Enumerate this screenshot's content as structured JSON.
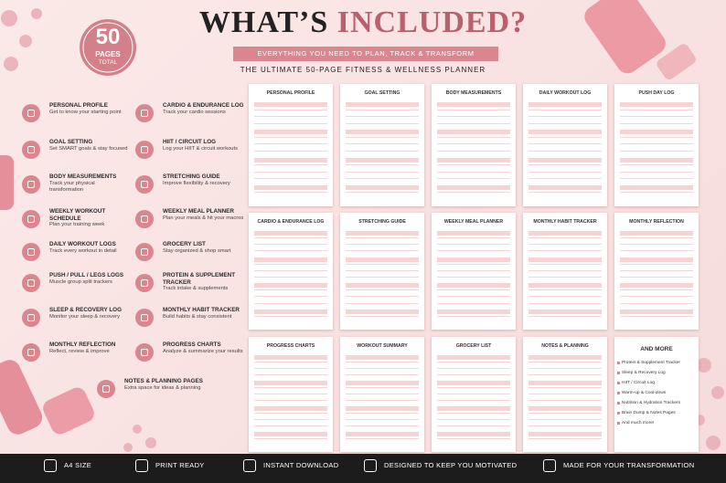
{
  "header": {
    "title_part1": "WHAT’S",
    "title_part2": "INCLUDED?",
    "ribbon": "EVERYTHING YOU NEED TO PLAN, TRACK & TRANSFORM",
    "subtitle": "THE ULTIMATE 50-PAGE FITNESS & WELLNESS PLANNER"
  },
  "badge": {
    "number": "50",
    "label": "PAGES",
    "sublabel": "TOTAL"
  },
  "features": [
    {
      "title": "PERSONAL PROFILE",
      "desc": "Get to know your starting point"
    },
    {
      "title": "GOAL SETTING",
      "desc": "Set SMART goals & stay focused"
    },
    {
      "title": "BODY MEASUREMENTS",
      "desc": "Track your physical transformation"
    },
    {
      "title": "WEEKLY WORKOUT SCHEDULE",
      "desc": "Plan your training week"
    },
    {
      "title": "DAILY WORKOUT LOGS",
      "desc": "Track every workout in detail"
    },
    {
      "title": "PUSH / PULL / LEGS LOGS",
      "desc": "Muscle group split trackers"
    },
    {
      "title": "SLEEP & RECOVERY LOG",
      "desc": "Monitor your sleep & recovery"
    },
    {
      "title": "MONTHLY REFLECTION",
      "desc": "Reflect, review & improve"
    },
    {
      "title": "CARDIO & ENDURANCE LOG",
      "desc": "Track your cardio sessions"
    },
    {
      "title": "HIIT / CIRCUIT LOG",
      "desc": "Log your HIIT & circuit workouts"
    },
    {
      "title": "STRETCHING GUIDE",
      "desc": "Improve flexibility & recovery"
    },
    {
      "title": "WEEKLY MEAL PLANNER",
      "desc": "Plan your meals & hit your macros"
    },
    {
      "title": "GROCERY LIST",
      "desc": "Stay organized & shop smart"
    },
    {
      "title": "PROTEIN & SUPPLEMENT TRACKER",
      "desc": "Track intake & supplements"
    },
    {
      "title": "MONTHLY HABIT TRACKER",
      "desc": "Build habits & stay consistent"
    },
    {
      "title": "PROGRESS CHARTS",
      "desc": "Analyze & summarize your results"
    },
    {
      "title": "NOTES & PLANNING PAGES",
      "desc": "Extra space for ideas & planning"
    }
  ],
  "pages": [
    "PERSONAL PROFILE",
    "GOAL SETTING",
    "BODY MEASUREMENTS",
    "DAILY WORKOUT LOG",
    "PUSH DAY LOG",
    "CARDIO & ENDURANCE LOG",
    "STRETCHING GUIDE",
    "WEEKLY MEAL PLANNER",
    "MONTHLY HABIT TRACKER",
    "MONTHLY REFLECTION",
    "PROGRESS CHARTS",
    "WORKOUT SUMMARY",
    "GROCERY LIST",
    "NOTES & PLANNING"
  ],
  "more": {
    "title": "AND MORE",
    "items": [
      "Protein & Supplement Tracker",
      "Sleep & Recovery Log",
      "HIIT / Circuit Log",
      "Warm-up & Cool-down",
      "Nutrition & Hydration Trackers",
      "Brain Dump & Notes Pages",
      "And much more!"
    ]
  },
  "footer": [
    "A4 SIZE",
    "PRINT READY",
    "INSTANT DOWNLOAD",
    "DESIGNED TO KEEP YOU MOTIVATED",
    "MADE FOR YOUR TRANSFORMATION"
  ]
}
